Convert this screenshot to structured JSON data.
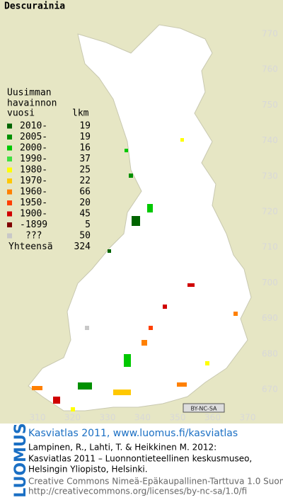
{
  "map": {
    "title": "Descurainia",
    "legend": {
      "heading": [
        "Uusimman",
        "havainnon"
      ],
      "col_year": "vuosi",
      "col_count": "lkm",
      "rows": [
        {
          "label": "2010-",
          "count": 19,
          "color": "#006400"
        },
        {
          "label": "2005-",
          "count": 19,
          "color": "#009000"
        },
        {
          "label": "2000-",
          "count": 16,
          "color": "#00c800"
        },
        {
          "label": "1990-",
          "count": 37,
          "color": "#40e040"
        },
        {
          "label": "1980-",
          "count": 25,
          "color": "#ffff00"
        },
        {
          "label": "1970-",
          "count": 22,
          "color": "#ffc800"
        },
        {
          "label": "1960-",
          "count": 66,
          "color": "#ff8000"
        },
        {
          "label": "1950-",
          "count": 20,
          "color": "#ff4000"
        },
        {
          "label": "1900-",
          "count": 45,
          "color": "#d00000"
        },
        {
          "label": "-1899",
          "count": 5,
          "color": "#800000"
        },
        {
          "label": "???",
          "count": 50,
          "color": "#c8c8c8"
        }
      ],
      "total_label": "Yhteensä",
      "total": 324
    },
    "northing_labels": [
      770,
      760,
      750,
      740,
      730,
      720,
      710,
      700,
      690,
      680,
      670
    ],
    "easting_labels": [
      310,
      320,
      330,
      340,
      350,
      360,
      370
    ],
    "license_badge": "BY-NC-SA"
  },
  "footer": {
    "logo": "LUOMUS",
    "headline": "Kasviatlas 2011, www.luomus.fi/kasviatlas",
    "citation": [
      "Lampinen, R., Lahti, T. & Heikkinen M. 2012:",
      "Kasviatlas 2011 – Luonnontieteellinen keskusmuseo,",
      "Helsingin Yliopisto, Helsinki."
    ],
    "license": [
      "Creative Commons Nimeä-Epäkaupallinen-Tarttuva 1.0 Suomi",
      "http://creativecommons.org/licenses/by-nc-sa/1.0/fi"
    ]
  }
}
